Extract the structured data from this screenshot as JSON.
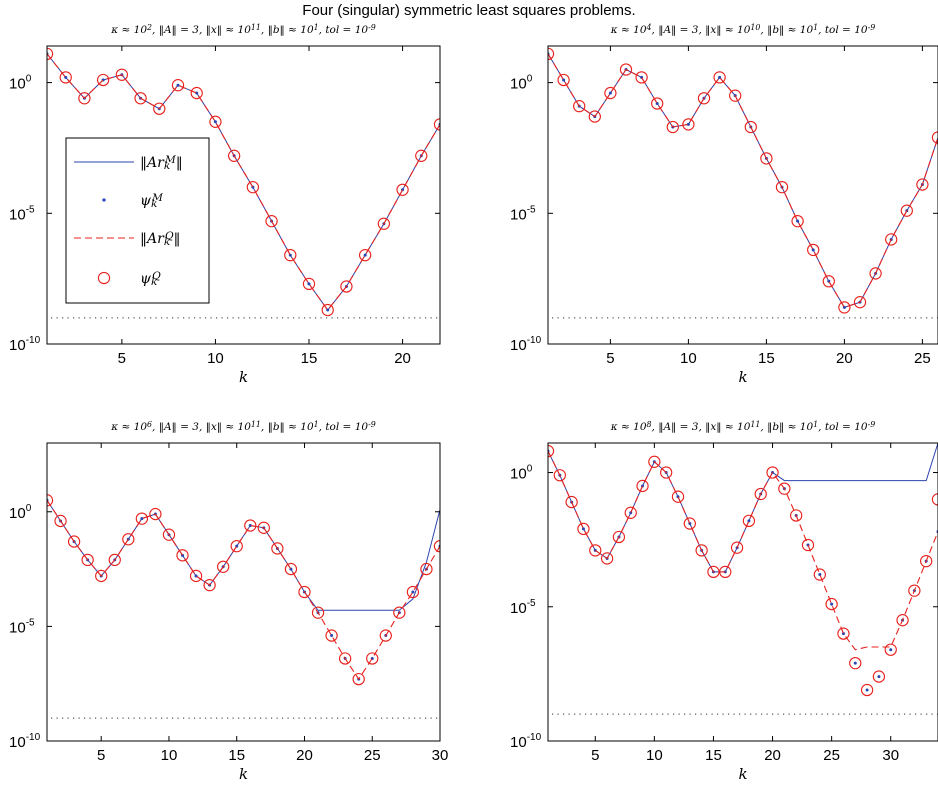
{
  "suptitle": "Four (singular) symmetric least squares problems.",
  "colors": {
    "minres": "#2a44b0",
    "qlp": "#e8201c",
    "tol_line": "#333333",
    "axis": "#000000"
  },
  "chart_data": [
    {
      "type": "line",
      "title": "κ ≈ 10^2, ‖A‖ = 3, ‖x‖ ≈ 10^11, ‖b‖ ≈ 10^1, tol = 10^-9",
      "xlabel": "k",
      "ylabel": "",
      "xlim": [
        1,
        22
      ],
      "ylim_log10": [
        -10,
        1.4
      ],
      "yscale": "log",
      "xticks": [
        5,
        10,
        15,
        20
      ],
      "yticks": [
        "10^0",
        "10^-5",
        "10^-10"
      ],
      "legend": "left",
      "tol_log10": -9,
      "x": [
        1,
        2,
        3,
        4,
        5,
        6,
        7,
        8,
        9,
        10,
        11,
        12,
        13,
        14,
        15,
        16,
        17,
        18,
        19,
        20,
        21,
        22
      ],
      "series": [
        {
          "name": "‖Ar_k^M‖",
          "style": "solid-line",
          "log10_values": [
            1.1,
            0.2,
            -0.6,
            0.1,
            0.3,
            -0.6,
            -1.0,
            -0.1,
            -0.4,
            -1.5,
            -2.8,
            -4.0,
            -5.3,
            -6.6,
            -7.7,
            -8.7,
            -7.8,
            -6.6,
            -5.4,
            -4.1,
            -2.8,
            -1.6
          ]
        },
        {
          "name": "ψ_k^M",
          "style": "dots",
          "log10_values": [
            1.1,
            0.2,
            -0.6,
            0.1,
            0.3,
            -0.6,
            -1.0,
            -0.1,
            -0.4,
            -1.5,
            -2.8,
            -4.0,
            -5.3,
            -6.6,
            -7.7,
            -8.7,
            -7.8,
            -6.6,
            -5.4,
            -4.1,
            -2.8,
            -1.6
          ]
        },
        {
          "name": "‖Ar_k^Q‖",
          "style": "dashed-line",
          "log10_values": [
            1.1,
            0.2,
            -0.6,
            0.1,
            0.3,
            -0.6,
            -1.0,
            -0.1,
            -0.4,
            -1.5,
            -2.8,
            -4.0,
            -5.3,
            -6.6,
            -7.7,
            -8.7,
            -7.8,
            -6.6,
            -5.4,
            -4.1,
            -2.8,
            -1.6
          ]
        },
        {
          "name": "ψ_k^Q",
          "style": "circles",
          "log10_values": [
            1.1,
            0.2,
            -0.6,
            0.1,
            0.3,
            -0.6,
            -1.0,
            -0.1,
            -0.4,
            -1.5,
            -2.8,
            -4.0,
            -5.3,
            -6.6,
            -7.7,
            -8.7,
            -7.8,
            -6.6,
            -5.4,
            -4.1,
            -2.8,
            -1.6
          ]
        }
      ]
    },
    {
      "type": "line",
      "title": "κ ≈ 10^4, ‖A‖ = 3, ‖x‖ ≈ 10^10, ‖b‖ ≈ 10^1, tol = 10^-9",
      "xlabel": "k",
      "ylabel": "",
      "xlim": [
        1,
        26
      ],
      "ylim_log10": [
        -10,
        1.4
      ],
      "yscale": "log",
      "xticks": [
        5,
        10,
        15,
        20,
        25
      ],
      "yticks": [
        "10^0",
        "10^-5",
        "10^-10"
      ],
      "tol_log10": -9,
      "x": [
        1,
        2,
        3,
        4,
        5,
        6,
        7,
        8,
        9,
        10,
        11,
        12,
        13,
        14,
        15,
        16,
        17,
        18,
        19,
        20,
        21,
        22,
        23,
        24,
        25,
        26
      ],
      "series": [
        {
          "name": "‖Ar_k^M‖",
          "style": "solid-line",
          "log10_values": [
            1.1,
            0.1,
            -0.9,
            -1.3,
            -0.4,
            0.5,
            0.2,
            -0.8,
            -1.7,
            -1.6,
            -0.6,
            0.2,
            -0.5,
            -1.7,
            -2.9,
            -4.0,
            -5.3,
            -6.4,
            -7.6,
            -8.6,
            -8.4,
            -7.3,
            -6.0,
            -4.9,
            -3.9,
            -2.1
          ]
        },
        {
          "name": "ψ_k^M",
          "style": "dots",
          "log10_values": [
            1.1,
            0.1,
            -0.9,
            -1.3,
            -0.4,
            0.5,
            0.2,
            -0.8,
            -1.7,
            -1.6,
            -0.6,
            0.2,
            -0.5,
            -1.7,
            -2.9,
            -4.0,
            -5.3,
            -6.4,
            -7.6,
            -8.6,
            -8.4,
            -7.3,
            -6.0,
            -4.9,
            -3.9,
            -2.3
          ]
        },
        {
          "name": "‖Ar_k^Q‖",
          "style": "dashed-line",
          "log10_values": [
            1.1,
            0.1,
            -0.9,
            -1.3,
            -0.4,
            0.5,
            0.2,
            -0.8,
            -1.7,
            -1.6,
            -0.6,
            0.2,
            -0.5,
            -1.7,
            -2.9,
            -4.0,
            -5.3,
            -6.4,
            -7.6,
            -8.6,
            -8.4,
            -7.3,
            -6.0,
            -4.9,
            -3.9,
            -2.1
          ]
        },
        {
          "name": "ψ_k^Q",
          "style": "circles",
          "log10_values": [
            1.1,
            0.1,
            -0.9,
            -1.3,
            -0.4,
            0.5,
            0.2,
            -0.8,
            -1.7,
            -1.6,
            -0.6,
            0.2,
            -0.5,
            -1.7,
            -2.9,
            -4.0,
            -5.3,
            -6.4,
            -7.6,
            -8.6,
            -8.4,
            -7.3,
            -6.0,
            -4.9,
            -3.9,
            -2.1
          ]
        }
      ]
    },
    {
      "type": "line",
      "title": "κ ≈ 10^6, ‖A‖ = 3, ‖x‖ ≈ 10^11, ‖b‖ ≈ 10^1, tol = 10^-9",
      "xlabel": "k",
      "ylabel": "",
      "xlim": [
        1,
        30
      ],
      "ylim_log10": [
        -10,
        3
      ],
      "yscale": "log",
      "xticks": [
        5,
        10,
        15,
        20,
        25,
        30
      ],
      "yticks": [
        "10^0",
        "10^-5",
        "10^-10"
      ],
      "tol_log10": -9,
      "x": [
        1,
        2,
        3,
        4,
        5,
        6,
        7,
        8,
        9,
        10,
        11,
        12,
        13,
        14,
        15,
        16,
        17,
        18,
        19,
        20,
        21,
        22,
        23,
        24,
        25,
        26,
        27,
        28,
        29,
        30
      ],
      "series": [
        {
          "name": "‖Ar_k^M‖",
          "style": "solid-line",
          "log10_values": [
            0.5,
            -0.4,
            -1.3,
            -2.1,
            -2.8,
            -2.1,
            -1.2,
            -0.3,
            -0.1,
            -1.0,
            -1.9,
            -2.8,
            -3.2,
            -2.4,
            -1.5,
            -0.6,
            -0.7,
            -1.6,
            -2.5,
            -3.5,
            -4.3,
            -4.3,
            -4.3,
            -4.3,
            -4.3,
            -4.3,
            -4.3,
            -3.8,
            -2.2,
            0.1
          ]
        },
        {
          "name": "ψ_k^M",
          "style": "dots",
          "log10_values": [
            0.5,
            -0.4,
            -1.3,
            -2.1,
            -2.8,
            -2.1,
            -1.2,
            -0.3,
            -0.1,
            -1.0,
            -1.9,
            -2.8,
            -3.2,
            -2.4,
            -1.5,
            -0.6,
            -0.7,
            -1.6,
            -2.5,
            -3.5,
            -4.4,
            -5.4,
            -6.4,
            -7.3,
            -6.4,
            -5.4,
            -4.4,
            -3.5,
            -2.5,
            -1.5
          ]
        },
        {
          "name": "‖Ar_k^Q‖",
          "style": "dashed-line",
          "log10_values": [
            0.5,
            -0.4,
            -1.3,
            -2.1,
            -2.8,
            -2.1,
            -1.2,
            -0.3,
            -0.1,
            -1.0,
            -1.9,
            -2.8,
            -3.2,
            -2.4,
            -1.5,
            -0.6,
            -0.7,
            -1.6,
            -2.5,
            -3.5,
            -4.4,
            -5.4,
            -6.4,
            -7.3,
            -6.4,
            -5.4,
            -4.4,
            -3.5,
            -2.5,
            -1.5
          ]
        },
        {
          "name": "ψ_k^Q",
          "style": "circles",
          "log10_values": [
            0.5,
            -0.4,
            -1.3,
            -2.1,
            -2.8,
            -2.1,
            -1.2,
            -0.3,
            -0.1,
            -1.0,
            -1.9,
            -2.8,
            -3.2,
            -2.4,
            -1.5,
            -0.6,
            -0.7,
            -1.6,
            -2.5,
            -3.5,
            -4.4,
            -5.4,
            -6.4,
            -7.3,
            -6.4,
            -5.4,
            -4.4,
            -3.5,
            -2.5,
            -1.5
          ]
        }
      ]
    },
    {
      "type": "line",
      "title": "κ ≈ 10^8, ‖A‖ = 3, ‖x‖ ≈ 10^11, ‖b‖ ≈ 10^1, tol = 10^-9",
      "xlabel": "k",
      "ylabel": "",
      "xlim": [
        1,
        34
      ],
      "ylim_log10": [
        -10,
        1.1
      ],
      "yscale": "log",
      "xticks": [
        5,
        10,
        15,
        20,
        25,
        30
      ],
      "yticks": [
        "10^0",
        "10^-5",
        "10^-10"
      ],
      "tol_log10": -9,
      "x": [
        1,
        2,
        3,
        4,
        5,
        6,
        7,
        8,
        9,
        10,
        11,
        12,
        13,
        14,
        15,
        16,
        17,
        18,
        19,
        20,
        21,
        22,
        23,
        24,
        25,
        26,
        27,
        28,
        29,
        30,
        31,
        32,
        33,
        34
      ],
      "series": [
        {
          "name": "‖Ar_k^M‖",
          "style": "solid-line",
          "log10_values": [
            0.8,
            -0.1,
            -1.1,
            -2.1,
            -2.9,
            -3.2,
            -2.4,
            -1.5,
            -0.5,
            0.4,
            0.0,
            -0.9,
            -1.9,
            -2.9,
            -3.7,
            -3.7,
            -2.8,
            -1.8,
            -0.8,
            0.0,
            -0.3,
            -0.3,
            -0.3,
            -0.3,
            -0.3,
            -0.3,
            -0.3,
            -0.3,
            -0.3,
            -0.3,
            -0.3,
            -0.3,
            -0.3,
            1.1
          ]
        },
        {
          "name": "ψ_k^M",
          "style": "dots",
          "log10_values": [
            0.8,
            -0.1,
            -1.1,
            -2.1,
            -2.9,
            -3.2,
            -2.4,
            -1.5,
            -0.5,
            0.4,
            0.0,
            -0.9,
            -1.9,
            -2.9,
            -3.7,
            -3.7,
            -2.8,
            -1.8,
            -0.8,
            0.0,
            -0.6,
            -1.6,
            -2.7,
            -3.8,
            -4.9,
            -6.0,
            -7.1,
            -8.1,
            -7.6,
            -6.6,
            -5.5,
            -4.4,
            -3.3,
            -2.2
          ]
        },
        {
          "name": "‖Ar_k^Q‖",
          "style": "dashed-line",
          "log10_values": [
            0.8,
            -0.1,
            -1.1,
            -2.1,
            -2.9,
            -3.2,
            -2.4,
            -1.5,
            -0.5,
            0.4,
            0.0,
            -0.9,
            -1.9,
            -2.9,
            -3.7,
            -3.7,
            -2.8,
            -1.8,
            -0.8,
            0.0,
            -0.6,
            -1.6,
            -2.7,
            -3.8,
            -4.9,
            -6.0,
            -6.6,
            -6.5,
            -6.5,
            -6.5,
            -5.5,
            -4.4,
            -3.3,
            -2.2
          ]
        },
        {
          "name": "ψ_k^Q",
          "style": "circles",
          "log10_values": [
            0.8,
            -0.1,
            -1.1,
            -2.1,
            -2.9,
            -3.2,
            -2.4,
            -1.5,
            -0.5,
            0.4,
            0.0,
            -0.9,
            -1.9,
            -2.9,
            -3.7,
            -3.7,
            -2.8,
            -1.8,
            -0.8,
            0.0,
            -0.6,
            -1.6,
            -2.7,
            -3.8,
            -4.9,
            -6.0,
            -7.1,
            -8.1,
            -7.6,
            -6.6,
            -5.5,
            -4.4,
            -3.3,
            -1.0
          ]
        }
      ]
    }
  ]
}
